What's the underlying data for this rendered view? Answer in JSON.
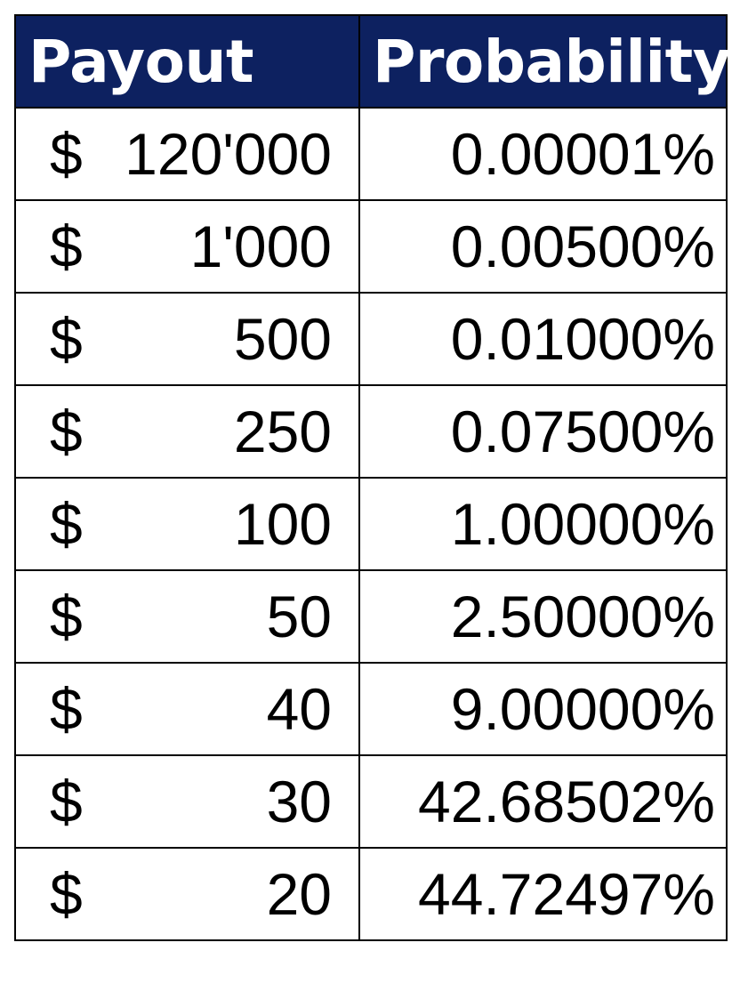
{
  "table": {
    "headers": {
      "payout": "Payout",
      "probability": "Probability"
    },
    "currency_symbol": "$",
    "rows": [
      {
        "payout": "120'000",
        "probability": "0.00001%"
      },
      {
        "payout": "1'000",
        "probability": "0.00500%"
      },
      {
        "payout": "500",
        "probability": "0.01000%"
      },
      {
        "payout": "250",
        "probability": "0.07500%"
      },
      {
        "payout": "100",
        "probability": "1.00000%"
      },
      {
        "payout": "50",
        "probability": "2.50000%"
      },
      {
        "payout": "40",
        "probability": "9.00000%"
      },
      {
        "payout": "30",
        "probability": "42.68502%"
      },
      {
        "payout": "20",
        "probability": "44.72497%"
      }
    ]
  },
  "colors": {
    "header_bg": "#0d2160",
    "header_text": "#ffffff",
    "border": "#000000"
  }
}
